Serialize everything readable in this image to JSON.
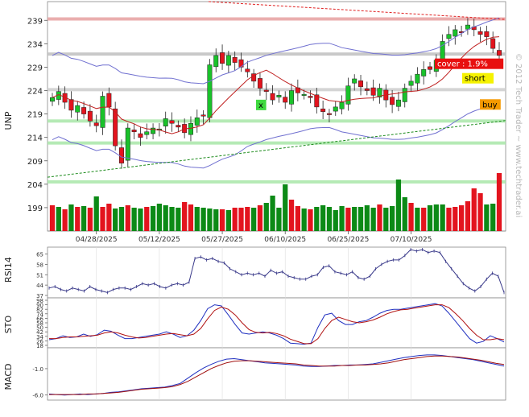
{
  "chart_data": [
    {
      "type": "candlestick",
      "title": "UNP",
      "ylim": [
        194,
        243
      ],
      "y_ticks": [
        199,
        204,
        209,
        214,
        219,
        224,
        229,
        234,
        239
      ],
      "x_ticks": [
        "04/28/2025",
        "05/12/2025",
        "05/27/2025",
        "06/10/2025",
        "06/25/2025",
        "07/10/2025"
      ],
      "x_tick_positions": [
        7,
        17,
        27,
        37,
        47,
        57
      ],
      "num_bars": 72,
      "closes": [
        222.5,
        223.8,
        221.5,
        219.8,
        220.8,
        219.0,
        217.5,
        216.5,
        222.8,
        220.5,
        212.2,
        208.5,
        216.0,
        215.2,
        214.0,
        215.2,
        216.0,
        215.8,
        218.0,
        217.0,
        216.2,
        215.0,
        217.0,
        218.2,
        218.6,
        229.5,
        231.5,
        229.8,
        231.5,
        230.0,
        229.0,
        228.0,
        226.0,
        224.5,
        223.8,
        222.0,
        223.0,
        221.5,
        224.0,
        223.5,
        223.2,
        222.5,
        220.5,
        219.5,
        219.0,
        220.5,
        221.5,
        225.0,
        226.5,
        224.8,
        224.0,
        223.0,
        224.5,
        222.0,
        221.0,
        222.0,
        224.5,
        226.0,
        227.5,
        228.5,
        228.5,
        230.5,
        234.5,
        236.0,
        237.0,
        236.5,
        238.0,
        237.0,
        236.0,
        235.5,
        233.0,
        231.5
      ],
      "open_overlay": "vol",
      "volume": [
        {
          "h": 32,
          "c": "red"
        },
        {
          "h": 30,
          "c": "green"
        },
        {
          "h": 27,
          "c": "red"
        },
        {
          "h": 33,
          "c": "green"
        },
        {
          "h": 30,
          "c": "red"
        },
        {
          "h": 31,
          "c": "green"
        },
        {
          "h": 29,
          "c": "red"
        },
        {
          "h": 43,
          "c": "green"
        },
        {
          "h": 30,
          "c": "red"
        },
        {
          "h": 34,
          "c": "red"
        },
        {
          "h": 28,
          "c": "green"
        },
        {
          "h": 30,
          "c": "green"
        },
        {
          "h": 32,
          "c": "red"
        },
        {
          "h": 29,
          "c": "green"
        },
        {
          "h": 28,
          "c": "green"
        },
        {
          "h": 30,
          "c": "red"
        },
        {
          "h": 31,
          "c": "green"
        },
        {
          "h": 34,
          "c": "green"
        },
        {
          "h": 32,
          "c": "green"
        },
        {
          "h": 30,
          "c": "green"
        },
        {
          "h": 29,
          "c": "green"
        },
        {
          "h": 36,
          "c": "red"
        },
        {
          "h": 33,
          "c": "red"
        },
        {
          "h": 30,
          "c": "green"
        },
        {
          "h": 29,
          "c": "green"
        },
        {
          "h": 28,
          "c": "green"
        },
        {
          "h": 27,
          "c": "green"
        },
        {
          "h": 27,
          "c": "red"
        },
        {
          "h": 26,
          "c": "green"
        },
        {
          "h": 29,
          "c": "red"
        },
        {
          "h": 29,
          "c": "red"
        },
        {
          "h": 30,
          "c": "red"
        },
        {
          "h": 29,
          "c": "green"
        },
        {
          "h": 32,
          "c": "red"
        },
        {
          "h": 35,
          "c": "green"
        },
        {
          "h": 44,
          "c": "green"
        },
        {
          "h": 29,
          "c": "green"
        },
        {
          "h": 58,
          "c": "green"
        },
        {
          "h": 39,
          "c": "red"
        },
        {
          "h": 31,
          "c": "red"
        },
        {
          "h": 28,
          "c": "green"
        },
        {
          "h": 27,
          "c": "red"
        },
        {
          "h": 30,
          "c": "green"
        },
        {
          "h": 32,
          "c": "green"
        },
        {
          "h": 30,
          "c": "green"
        },
        {
          "h": 26,
          "c": "green"
        },
        {
          "h": 31,
          "c": "green"
        },
        {
          "h": 29,
          "c": "red"
        },
        {
          "h": 30,
          "c": "green"
        },
        {
          "h": 30,
          "c": "green"
        },
        {
          "h": 32,
          "c": "green"
        },
        {
          "h": 29,
          "c": "green"
        },
        {
          "h": 33,
          "c": "red"
        },
        {
          "h": 29,
          "c": "green"
        },
        {
          "h": 31,
          "c": "green"
        },
        {
          "h": 64,
          "c": "green"
        },
        {
          "h": 42,
          "c": "green"
        },
        {
          "h": 35,
          "c": "red"
        },
        {
          "h": 29,
          "c": "green"
        },
        {
          "h": 29,
          "c": "red"
        },
        {
          "h": 32,
          "c": "green"
        },
        {
          "h": 33,
          "c": "green"
        },
        {
          "h": 33,
          "c": "green"
        },
        {
          "h": 29,
          "c": "red"
        },
        {
          "h": 30,
          "c": "red"
        },
        {
          "h": 32,
          "c": "red"
        },
        {
          "h": 37,
          "c": "red"
        },
        {
          "h": 53,
          "c": "red"
        },
        {
          "h": 47,
          "c": "red"
        },
        {
          "h": 33,
          "c": "green"
        },
        {
          "h": 34,
          "c": "green"
        },
        {
          "h": 72,
          "c": "red"
        }
      ],
      "signals": [
        {
          "label": "cover : 1.9%",
          "color": "#e81010",
          "text_color": "#ffffff"
        },
        {
          "label": "short",
          "color": "#f5f200",
          "text_color": "#000000"
        },
        {
          "label": "buy",
          "color": "#f59a00",
          "text_color": "#000000"
        },
        {
          "label": "x",
          "color": "#3fd93f",
          "text_color": "#000000"
        }
      ],
      "horizontal_levels": [
        {
          "value": 239.3,
          "color": "#e6a0a0"
        },
        {
          "value": 231.8,
          "color": "#bfbfbf"
        },
        {
          "value": 224.2,
          "color": "#cccccc"
        },
        {
          "value": 217.5,
          "color": "#a8e6a8"
        },
        {
          "value": 212.8,
          "color": "#a8e6a8"
        },
        {
          "value": 204.5,
          "color": "#a8e6a8"
        }
      ]
    },
    {
      "type": "line",
      "title": "RSI14",
      "ylim": [
        37,
        68
      ],
      "y_ticks": [
        37,
        44,
        51,
        58,
        65
      ],
      "series": [
        {
          "color": "#3a3a8a",
          "values": [
            42,
            43,
            41,
            40,
            42,
            41,
            40,
            43,
            41,
            40,
            39,
            41,
            42,
            42,
            41,
            43,
            45,
            44,
            45,
            43,
            42,
            44,
            45,
            44,
            46,
            62,
            63,
            61,
            62,
            60,
            59,
            55,
            53,
            51,
            52,
            51,
            52,
            50,
            54,
            52,
            53,
            50,
            49,
            48,
            48,
            50,
            51,
            56,
            57,
            53,
            52,
            51,
            53,
            49,
            48,
            50,
            55,
            58,
            60,
            61,
            61,
            64,
            68,
            67,
            68,
            66,
            67,
            66,
            60,
            55,
            50,
            45,
            42,
            40,
            43,
            48,
            52,
            50,
            39
          ]
        }
      ]
    },
    {
      "type": "line",
      "title": "STO",
      "ylim": [
        18,
        98
      ],
      "y_ticks": [
        18,
        26,
        34,
        42,
        50,
        58,
        66,
        74,
        82,
        90,
        98
      ],
      "series": [
        {
          "name": "",
          "color": "#2030c0",
          "values": [
            28,
            30,
            35,
            32,
            33,
            38,
            34,
            37,
            45,
            43,
            36,
            30,
            30,
            32,
            34,
            36,
            38,
            42,
            38,
            32,
            35,
            45,
            62,
            83,
            90,
            88,
            72,
            55,
            40,
            38,
            40,
            42,
            40,
            36,
            30,
            22,
            21,
            20,
            22,
            50,
            72,
            75,
            62,
            55,
            55,
            60,
            62,
            68,
            75,
            80,
            82,
            82,
            84,
            86,
            88,
            90,
            92,
            88,
            75,
            60,
            45,
            30,
            22,
            25,
            35,
            30,
            24
          ]
        },
        {
          "name": "",
          "color": "#b01010",
          "values": [
            30,
            30,
            32,
            33,
            33,
            34,
            35,
            36,
            40,
            42,
            40,
            36,
            33,
            31,
            32,
            34,
            36,
            38,
            39,
            37,
            35,
            38,
            48,
            65,
            80,
            86,
            82,
            72,
            58,
            46,
            41,
            40,
            41,
            39,
            35,
            29,
            25,
            21,
            21,
            30,
            48,
            62,
            68,
            64,
            60,
            58,
            60,
            63,
            68,
            74,
            78,
            81,
            82,
            84,
            86,
            88,
            90,
            90,
            85,
            74,
            62,
            48,
            36,
            28,
            28,
            30,
            28
          ]
        }
      ]
    },
    {
      "type": "line",
      "title": "MACD",
      "y_ticks": [
        -1.0,
        -6.0
      ],
      "ylim": [
        -6.5,
        2.5
      ],
      "series": [
        {
          "name": "",
          "color": "#2030c0",
          "values": [
            -5.8,
            -5.9,
            -6.0,
            -5.9,
            -5.8,
            -5.9,
            -5.8,
            -5.7,
            -5.5,
            -5.4,
            -5.2,
            -5.0,
            -4.8,
            -4.7,
            -4.6,
            -4.5,
            -4.2,
            -3.8,
            -2.8,
            -1.8,
            -0.9,
            -0.2,
            0.4,
            0.8,
            0.9,
            0.7,
            0.5,
            0.3,
            0.1,
            0.0,
            -0.1,
            -0.2,
            -0.3,
            -0.5,
            -0.6,
            -0.6,
            -0.5,
            -0.4,
            -0.4,
            -0.3,
            -0.3,
            -0.2,
            -0.1,
            0.2,
            0.5,
            0.8,
            1.1,
            1.3,
            1.5,
            1.6,
            1.6,
            1.5,
            1.3,
            1.1,
            0.9,
            0.7,
            0.4,
            0.1,
            -0.2,
            -0.5
          ]
        },
        {
          "name": "",
          "color": "#a01010",
          "values": [
            -5.9,
            -5.9,
            -5.9,
            -5.9,
            -5.9,
            -5.8,
            -5.8,
            -5.7,
            -5.6,
            -5.5,
            -5.3,
            -5.1,
            -4.9,
            -4.8,
            -4.7,
            -4.6,
            -4.4,
            -4.0,
            -3.4,
            -2.6,
            -1.8,
            -1.0,
            -0.4,
            0.1,
            0.4,
            0.5,
            0.5,
            0.4,
            0.3,
            0.2,
            0.1,
            0.0,
            -0.1,
            -0.3,
            -0.4,
            -0.5,
            -0.5,
            -0.5,
            -0.4,
            -0.4,
            -0.3,
            -0.3,
            -0.2,
            -0.1,
            0.1,
            0.4,
            0.7,
            0.9,
            1.1,
            1.3,
            1.4,
            1.4,
            1.3,
            1.2,
            1.0,
            0.8,
            0.6,
            0.3,
            0.0,
            -0.2
          ]
        }
      ]
    }
  ],
  "watermark": "© 2012 Tech Trader ~ www.techtrader.ai"
}
